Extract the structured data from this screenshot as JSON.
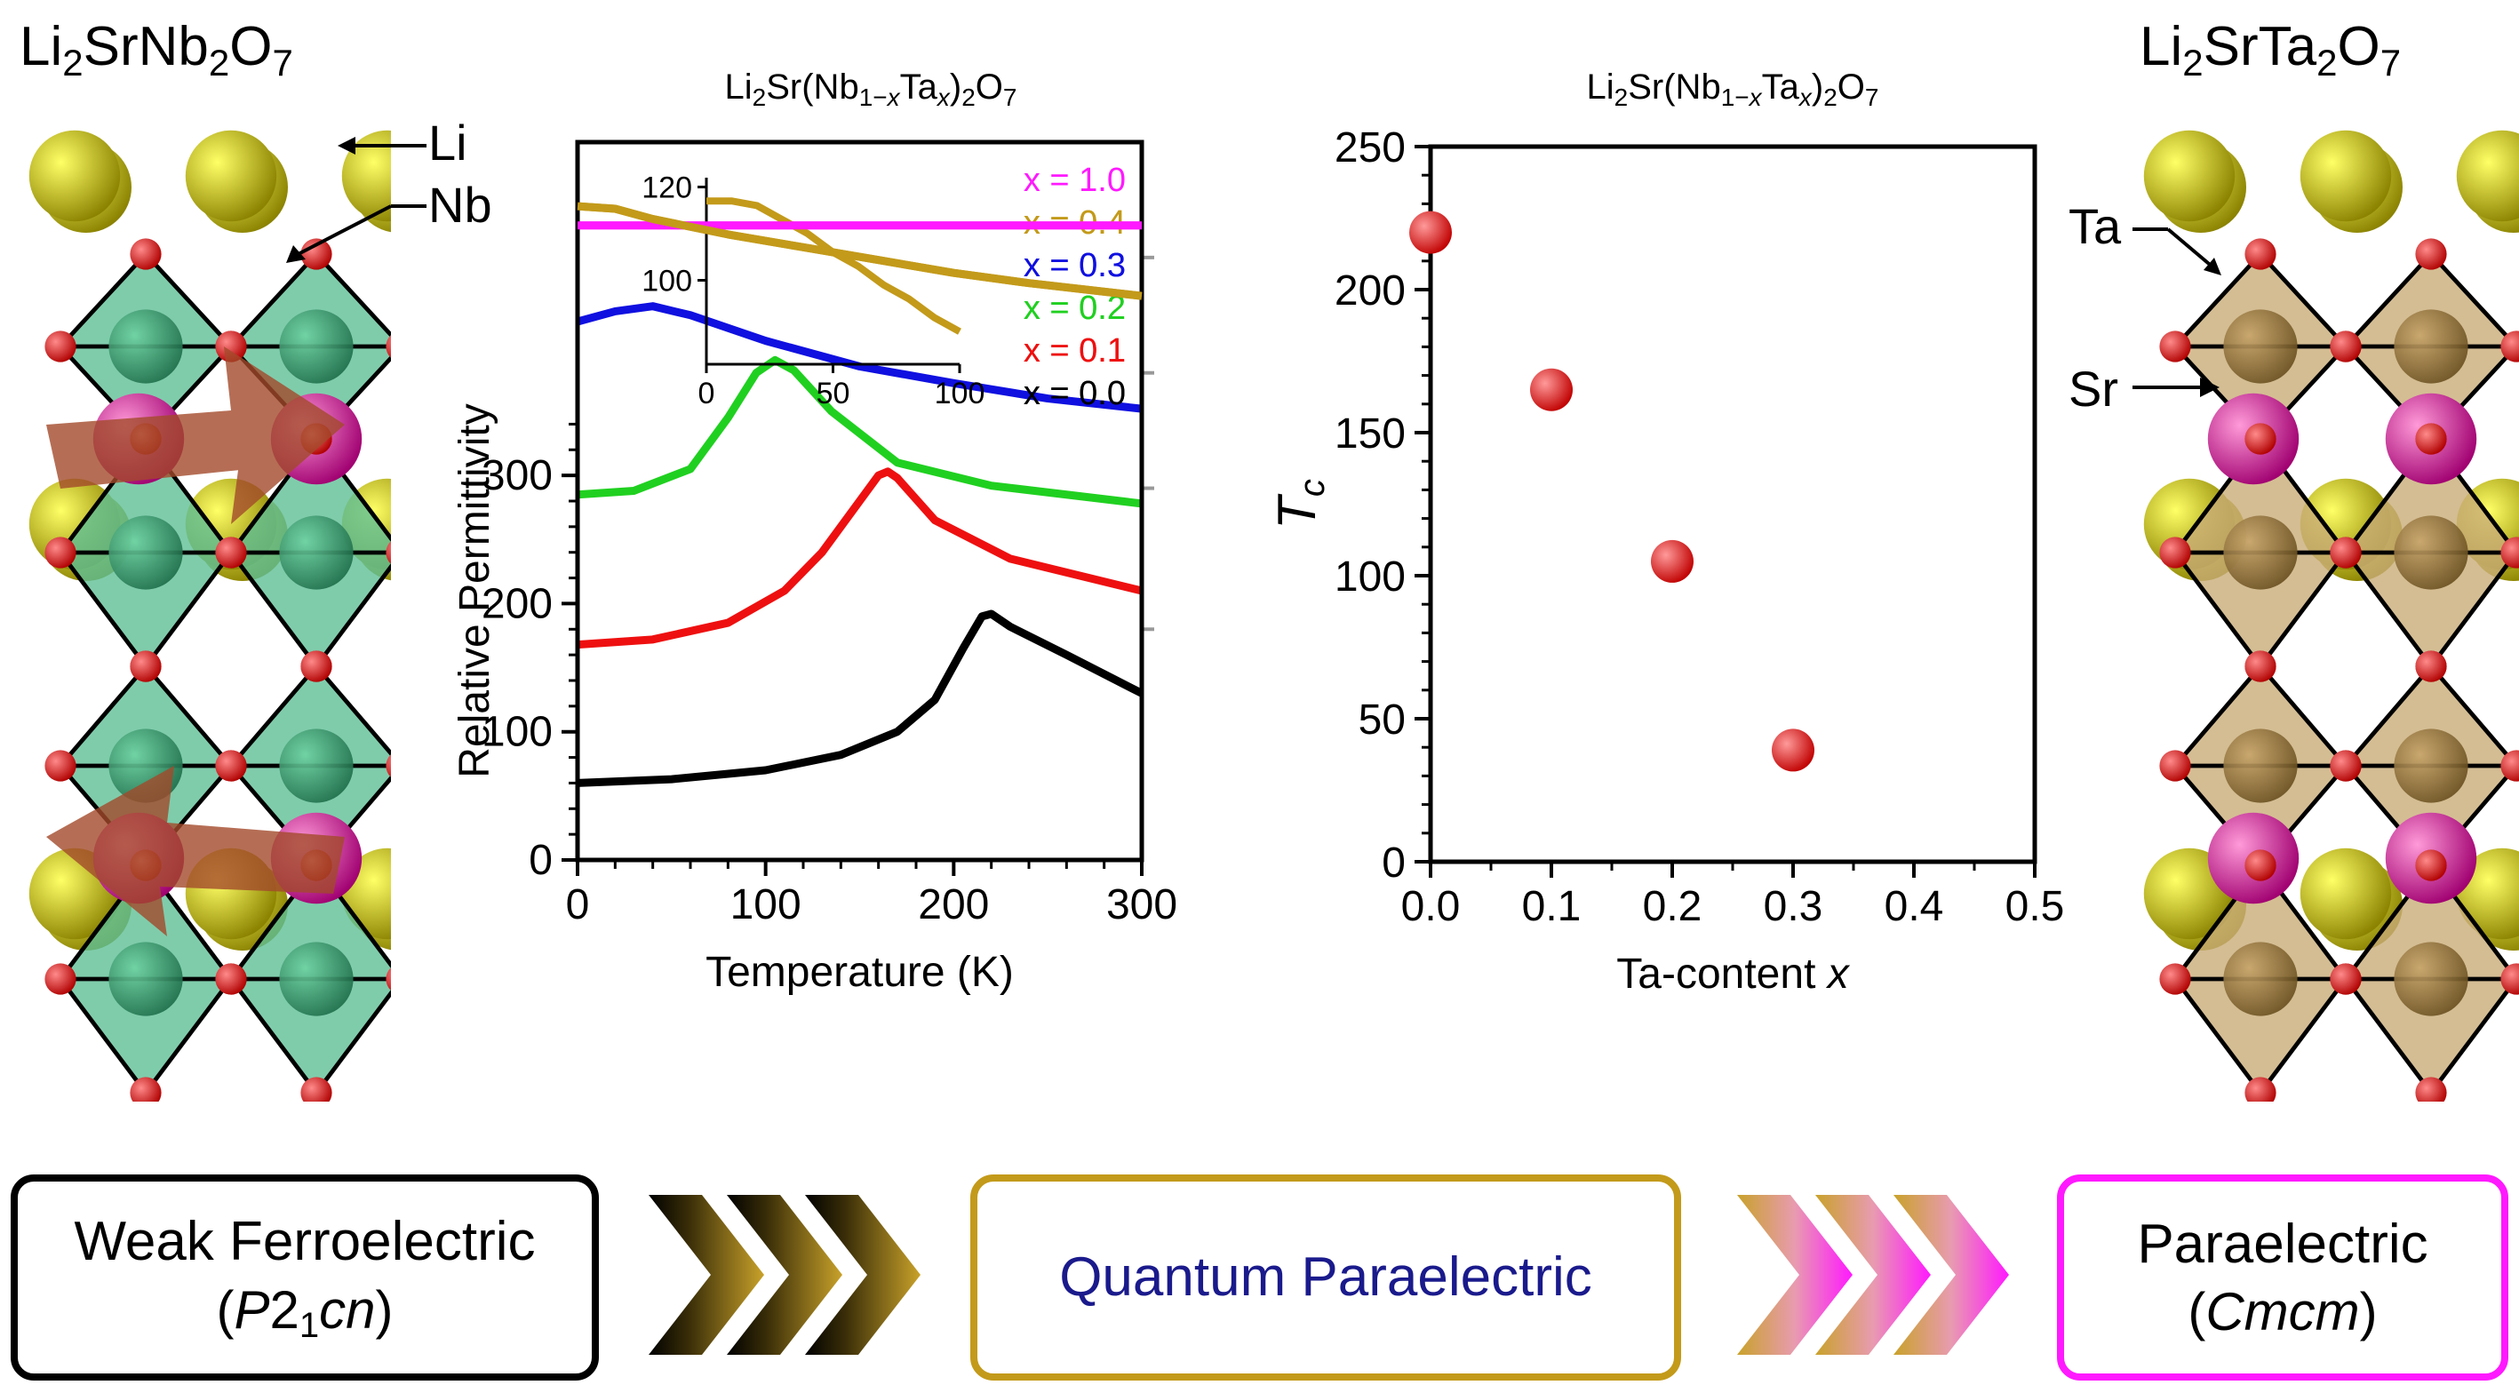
{
  "compound_left": {
    "prefix": "Li",
    "sub1": "2",
    "mid": "SrNb",
    "sub2": "2",
    "tail": "O",
    "sub3": "7"
  },
  "compound_right": {
    "prefix": "Li",
    "sub1": "2",
    "mid": "SrTa",
    "sub2": "2",
    "tail": "O",
    "sub3": "7"
  },
  "structure_labels": {
    "li": "Li",
    "nb": "Nb",
    "ta": "Ta",
    "sr": "Sr"
  },
  "phases": {
    "weak_ferro": {
      "line1": "Weak Ferroelectric",
      "line2_open": "(",
      "line2_p": "P",
      "line2_sub": "2",
      "line2_rest": "1cn",
      "line2_close": ")"
    },
    "quantum": {
      "label": "Quantum Paraelectric"
    },
    "para": {
      "line1": "Paraelectric",
      "line2_open": "(",
      "line2_italic": "Cmcm",
      "line2_close": ")"
    }
  },
  "colors": {
    "ferro_border": "#000000",
    "quantum_border": "#c39a1a",
    "para_border": "#ff19ff",
    "quantum_text": "#1a1a8c",
    "li": "#d4cc00",
    "oxygen": "#e8141b",
    "sr": "#e0249b",
    "nb_octa": "#5fbf96",
    "ta_octa": "#c9ad78",
    "arrow": "#a34a2b"
  },
  "chart_data": [
    {
      "type": "line",
      "title": "Li2Sr(Nb1−xTax)2O7",
      "xlabel": "Temperature (K)",
      "ylabel": "Relative Permittivity",
      "xlim": [
        0,
        300
      ],
      "x_ticks": [
        0,
        100,
        200,
        300
      ],
      "y_ticks": [
        0,
        100,
        200,
        300
      ],
      "legend_placement": "top-right",
      "series": [
        {
          "name": "x = 1.0",
          "color": "#ff19ff",
          "x": [
            0,
            300
          ],
          "y": [
            495,
            495
          ]
        },
        {
          "name": "x = 0.4",
          "color": "#c39a1a",
          "x": [
            0,
            20,
            40,
            80,
            120,
            160,
            200,
            240,
            300
          ],
          "y": [
            510,
            508,
            500,
            488,
            478,
            468,
            458,
            450,
            440
          ]
        },
        {
          "name": "x = 0.3",
          "color": "#1010e0",
          "x": [
            0,
            20,
            40,
            60,
            100,
            150,
            200,
            250,
            300
          ],
          "y": [
            420,
            428,
            432,
            425,
            405,
            385,
            372,
            360,
            352
          ]
        },
        {
          "name": "x = 0.2",
          "color": "#20d020",
          "x": [
            0,
            30,
            60,
            80,
            95,
            105,
            115,
            135,
            170,
            220,
            300
          ],
          "y": [
            285,
            288,
            305,
            345,
            380,
            390,
            382,
            350,
            310,
            292,
            278
          ]
        },
        {
          "name": "x = 0.1",
          "color": "#ee1010",
          "x": [
            0,
            40,
            80,
            110,
            130,
            150,
            160,
            165,
            170,
            190,
            230,
            300
          ],
          "y": [
            168,
            172,
            185,
            210,
            240,
            280,
            300,
            303,
            298,
            265,
            235,
            210
          ]
        },
        {
          "name": "x = 0.0",
          "color": "#000000",
          "x": [
            0,
            50,
            100,
            140,
            170,
            190,
            205,
            215,
            220,
            230,
            260,
            300
          ],
          "y": [
            60,
            63,
            70,
            82,
            100,
            125,
            165,
            190,
            192,
            182,
            160,
            130
          ]
        }
      ],
      "inset": {
        "xlim": [
          0,
          100
        ],
        "x_ticks": [
          0,
          50,
          100
        ],
        "y_ticks": [
          100,
          120
        ],
        "color": "#c39a1a",
        "x": [
          0,
          10,
          20,
          30,
          40,
          50,
          60,
          70,
          80,
          90,
          100
        ],
        "y": [
          117,
          117,
          116,
          113,
          110,
          106,
          103,
          99,
          96,
          92,
          89
        ]
      }
    },
    {
      "type": "scatter",
      "title": "Li2Sr(Nb1−xTax)2O7",
      "xlabel": "Ta-content x",
      "ylabel": "Tc",
      "xlim": [
        0,
        0.5
      ],
      "ylim": [
        0,
        250
      ],
      "x_ticks": [
        "0.0",
        "0.1",
        "0.2",
        "0.3",
        "0.4",
        "0.5"
      ],
      "y_ticks": [
        "0",
        "50",
        "100",
        "150",
        "200",
        "250"
      ],
      "x": [
        0.0,
        0.1,
        0.2,
        0.3
      ],
      "y": [
        220,
        165,
        105,
        39
      ],
      "marker_color": "#ee1010"
    }
  ],
  "chart_titles": {
    "main": "Li",
    "s1": "2",
    "mid": "Sr(Nb",
    "s2": "1−",
    "xi": "x",
    "mid2": "Ta",
    "s3": "x",
    "mid3": ")",
    "s4": "2",
    "end": "O",
    "s5": "7"
  }
}
